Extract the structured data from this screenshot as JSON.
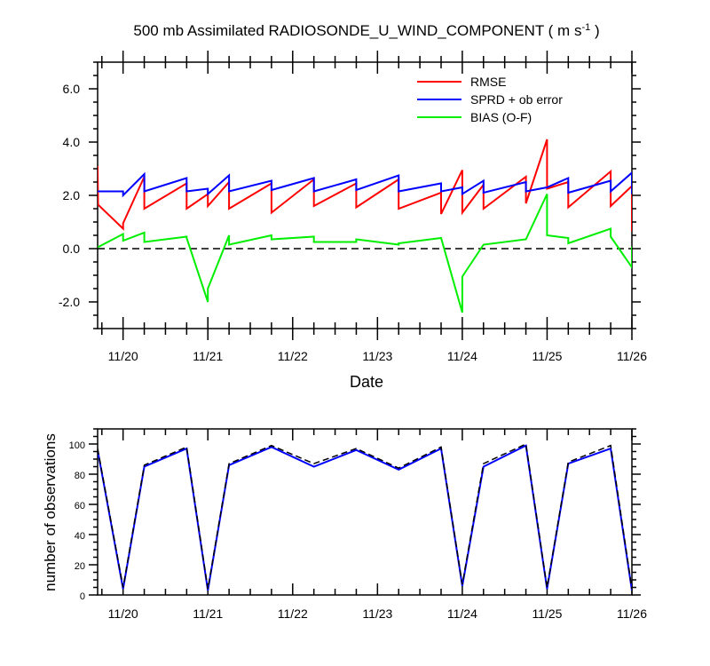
{
  "chart_data": [
    {
      "type": "line",
      "title": "500 mb Assimilated RADIOSONDE_U_WIND_COMPONENT ( m s",
      "title_unit_exponent": "-1",
      "title_close": " )",
      "xlabel": "Date",
      "ylabel": "",
      "x_ticks": [
        "11/20",
        "11/21",
        "11/22",
        "11/23",
        "11/24",
        "11/25",
        "11/26"
      ],
      "xlim": [
        19.7,
        26.0
      ],
      "ylim": [
        -3.0,
        7.0
      ],
      "y_ticks": [
        -2.0,
        0.0,
        2.0,
        4.0,
        6.0
      ],
      "y_tick_labels": [
        "-2.0",
        "0.0",
        "2.0",
        "4.0",
        "6.0"
      ],
      "legend_position": "top-right",
      "grid": false,
      "series": [
        {
          "name": "RMSE",
          "color": "#ff0000",
          "points": [
            [
              19.7,
              3.1
            ],
            [
              19.705,
              1.65
            ],
            [
              20.0,
              0.75
            ],
            [
              20.0,
              0.95
            ],
            [
              20.25,
              2.7
            ],
            [
              20.25,
              1.5
            ],
            [
              20.75,
              2.45
            ],
            [
              20.75,
              1.5
            ],
            [
              21.0,
              2.05
            ],
            [
              21.0,
              1.6
            ],
            [
              21.25,
              2.5
            ],
            [
              21.25,
              1.5
            ],
            [
              21.75,
              2.45
            ],
            [
              21.75,
              1.35
            ],
            [
              22.25,
              2.6
            ],
            [
              22.25,
              1.6
            ],
            [
              22.75,
              2.45
            ],
            [
              22.75,
              1.55
            ],
            [
              23.25,
              2.6
            ],
            [
              23.25,
              1.5
            ],
            [
              23.75,
              2.1
            ],
            [
              23.75,
              1.3
            ],
            [
              24.0,
              2.95
            ],
            [
              24.0,
              1.35
            ],
            [
              24.25,
              2.4
            ],
            [
              24.25,
              1.5
            ],
            [
              24.75,
              2.7
            ],
            [
              24.75,
              1.7
            ],
            [
              25.0,
              4.1
            ],
            [
              25.0,
              2.25
            ],
            [
              25.25,
              2.5
            ],
            [
              25.25,
              1.55
            ],
            [
              25.75,
              2.9
            ],
            [
              25.75,
              1.6
            ],
            [
              26.0,
              2.35
            ],
            [
              26.0,
              0.65
            ],
            [
              26.25,
              2.55
            ]
          ]
        },
        {
          "name": "SPRD + ob error",
          "color": "#0000ff",
          "points": [
            [
              19.7,
              2.15
            ],
            [
              20.0,
              2.15
            ],
            [
              20.0,
              2.0
            ],
            [
              20.25,
              2.8
            ],
            [
              20.25,
              2.15
            ],
            [
              20.75,
              2.65
            ],
            [
              20.75,
              2.15
            ],
            [
              21.0,
              2.25
            ],
            [
              21.0,
              2.05
            ],
            [
              21.25,
              2.75
            ],
            [
              21.25,
              2.15
            ],
            [
              21.75,
              2.55
            ],
            [
              21.75,
              2.2
            ],
            [
              22.25,
              2.65
            ],
            [
              22.25,
              2.15
            ],
            [
              22.75,
              2.6
            ],
            [
              22.75,
              2.2
            ],
            [
              23.25,
              2.75
            ],
            [
              23.25,
              2.15
            ],
            [
              23.75,
              2.45
            ],
            [
              23.75,
              2.15
            ],
            [
              24.0,
              2.3
            ],
            [
              24.0,
              2.05
            ],
            [
              24.25,
              2.55
            ],
            [
              24.25,
              2.1
            ],
            [
              24.75,
              2.5
            ],
            [
              24.75,
              2.15
            ],
            [
              25.0,
              2.3
            ],
            [
              25.25,
              2.65
            ],
            [
              25.25,
              2.1
            ],
            [
              25.75,
              2.55
            ],
            [
              25.75,
              2.15
            ],
            [
              26.0,
              2.85
            ],
            [
              26.0,
              2.1
            ],
            [
              26.25,
              2.7
            ]
          ]
        },
        {
          "name": "BIAS (O-F)",
          "color": "#00ee00",
          "points": [
            [
              19.7,
              0.05
            ],
            [
              20.0,
              0.55
            ],
            [
              20.0,
              0.3
            ],
            [
              20.25,
              0.6
            ],
            [
              20.25,
              0.25
            ],
            [
              20.75,
              0.45
            ],
            [
              20.75,
              0.4
            ],
            [
              21.0,
              -2.0
            ],
            [
              21.0,
              -1.5
            ],
            [
              21.25,
              0.5
            ],
            [
              21.25,
              0.15
            ],
            [
              21.75,
              0.5
            ],
            [
              21.75,
              0.35
            ],
            [
              22.25,
              0.45
            ],
            [
              22.25,
              0.25
            ],
            [
              22.75,
              0.25
            ],
            [
              22.75,
              0.35
            ],
            [
              23.25,
              0.15
            ],
            [
              23.25,
              0.2
            ],
            [
              23.75,
              0.4
            ],
            [
              24.0,
              -2.4
            ],
            [
              24.0,
              -1.05
            ],
            [
              24.25,
              0.15
            ],
            [
              24.75,
              0.35
            ],
            [
              25.0,
              2.05
            ],
            [
              25.0,
              0.5
            ],
            [
              25.25,
              0.4
            ],
            [
              25.25,
              0.2
            ],
            [
              25.75,
              0.75
            ],
            [
              25.75,
              0.45
            ],
            [
              26.0,
              -0.7
            ],
            [
              26.0,
              0.05
            ],
            [
              26.25,
              0.25
            ]
          ]
        }
      ],
      "reference_line": {
        "y": 0.0,
        "style": "dashed",
        "color": "#000000"
      }
    },
    {
      "type": "line",
      "title": "",
      "xlabel": "",
      "ylabel": "number of observations",
      "x_ticks": [
        "11/20",
        "11/21",
        "11/22",
        "11/23",
        "11/24",
        "11/25",
        "11/26"
      ],
      "xlim": [
        19.7,
        26.0
      ],
      "ylim": [
        0,
        110
      ],
      "y_ticks": [
        0,
        20,
        40,
        60,
        80,
        100
      ],
      "y_tick_labels": [
        "0",
        "20",
        "40",
        "60",
        "80",
        "100"
      ],
      "grid": false,
      "series": [
        {
          "color": "#0000ff",
          "points": [
            [
              19.7,
              96
            ],
            [
              20.0,
              4
            ],
            [
              20.25,
              85
            ],
            [
              20.75,
              97
            ],
            [
              21.0,
              3
            ],
            [
              21.25,
              86
            ],
            [
              21.75,
              98
            ],
            [
              22.25,
              85
            ],
            [
              22.75,
              96
            ],
            [
              23.25,
              83
            ],
            [
              23.75,
              97
            ],
            [
              24.0,
              6
            ],
            [
              24.25,
              85
            ],
            [
              24.75,
              99
            ],
            [
              25.0,
              4
            ],
            [
              25.25,
              87
            ],
            [
              25.75,
              97
            ],
            [
              26.0,
              3
            ],
            [
              26.25,
              89
            ]
          ]
        },
        {
          "color": "#000000",
          "dashed": true,
          "points": [
            [
              19.7,
              97
            ],
            [
              20.0,
              5
            ],
            [
              20.25,
              86
            ],
            [
              20.75,
              98
            ],
            [
              21.0,
              4
            ],
            [
              21.25,
              87
            ],
            [
              21.75,
              99
            ],
            [
              22.25,
              87
            ],
            [
              22.75,
              97
            ],
            [
              23.25,
              84
            ],
            [
              23.75,
              98
            ],
            [
              24.0,
              7
            ],
            [
              24.25,
              87
            ],
            [
              24.75,
              100
            ],
            [
              25.0,
              5
            ],
            [
              25.25,
              88
            ],
            [
              25.75,
              99
            ],
            [
              26.0,
              4
            ],
            [
              26.25,
              90
            ]
          ]
        }
      ]
    }
  ]
}
